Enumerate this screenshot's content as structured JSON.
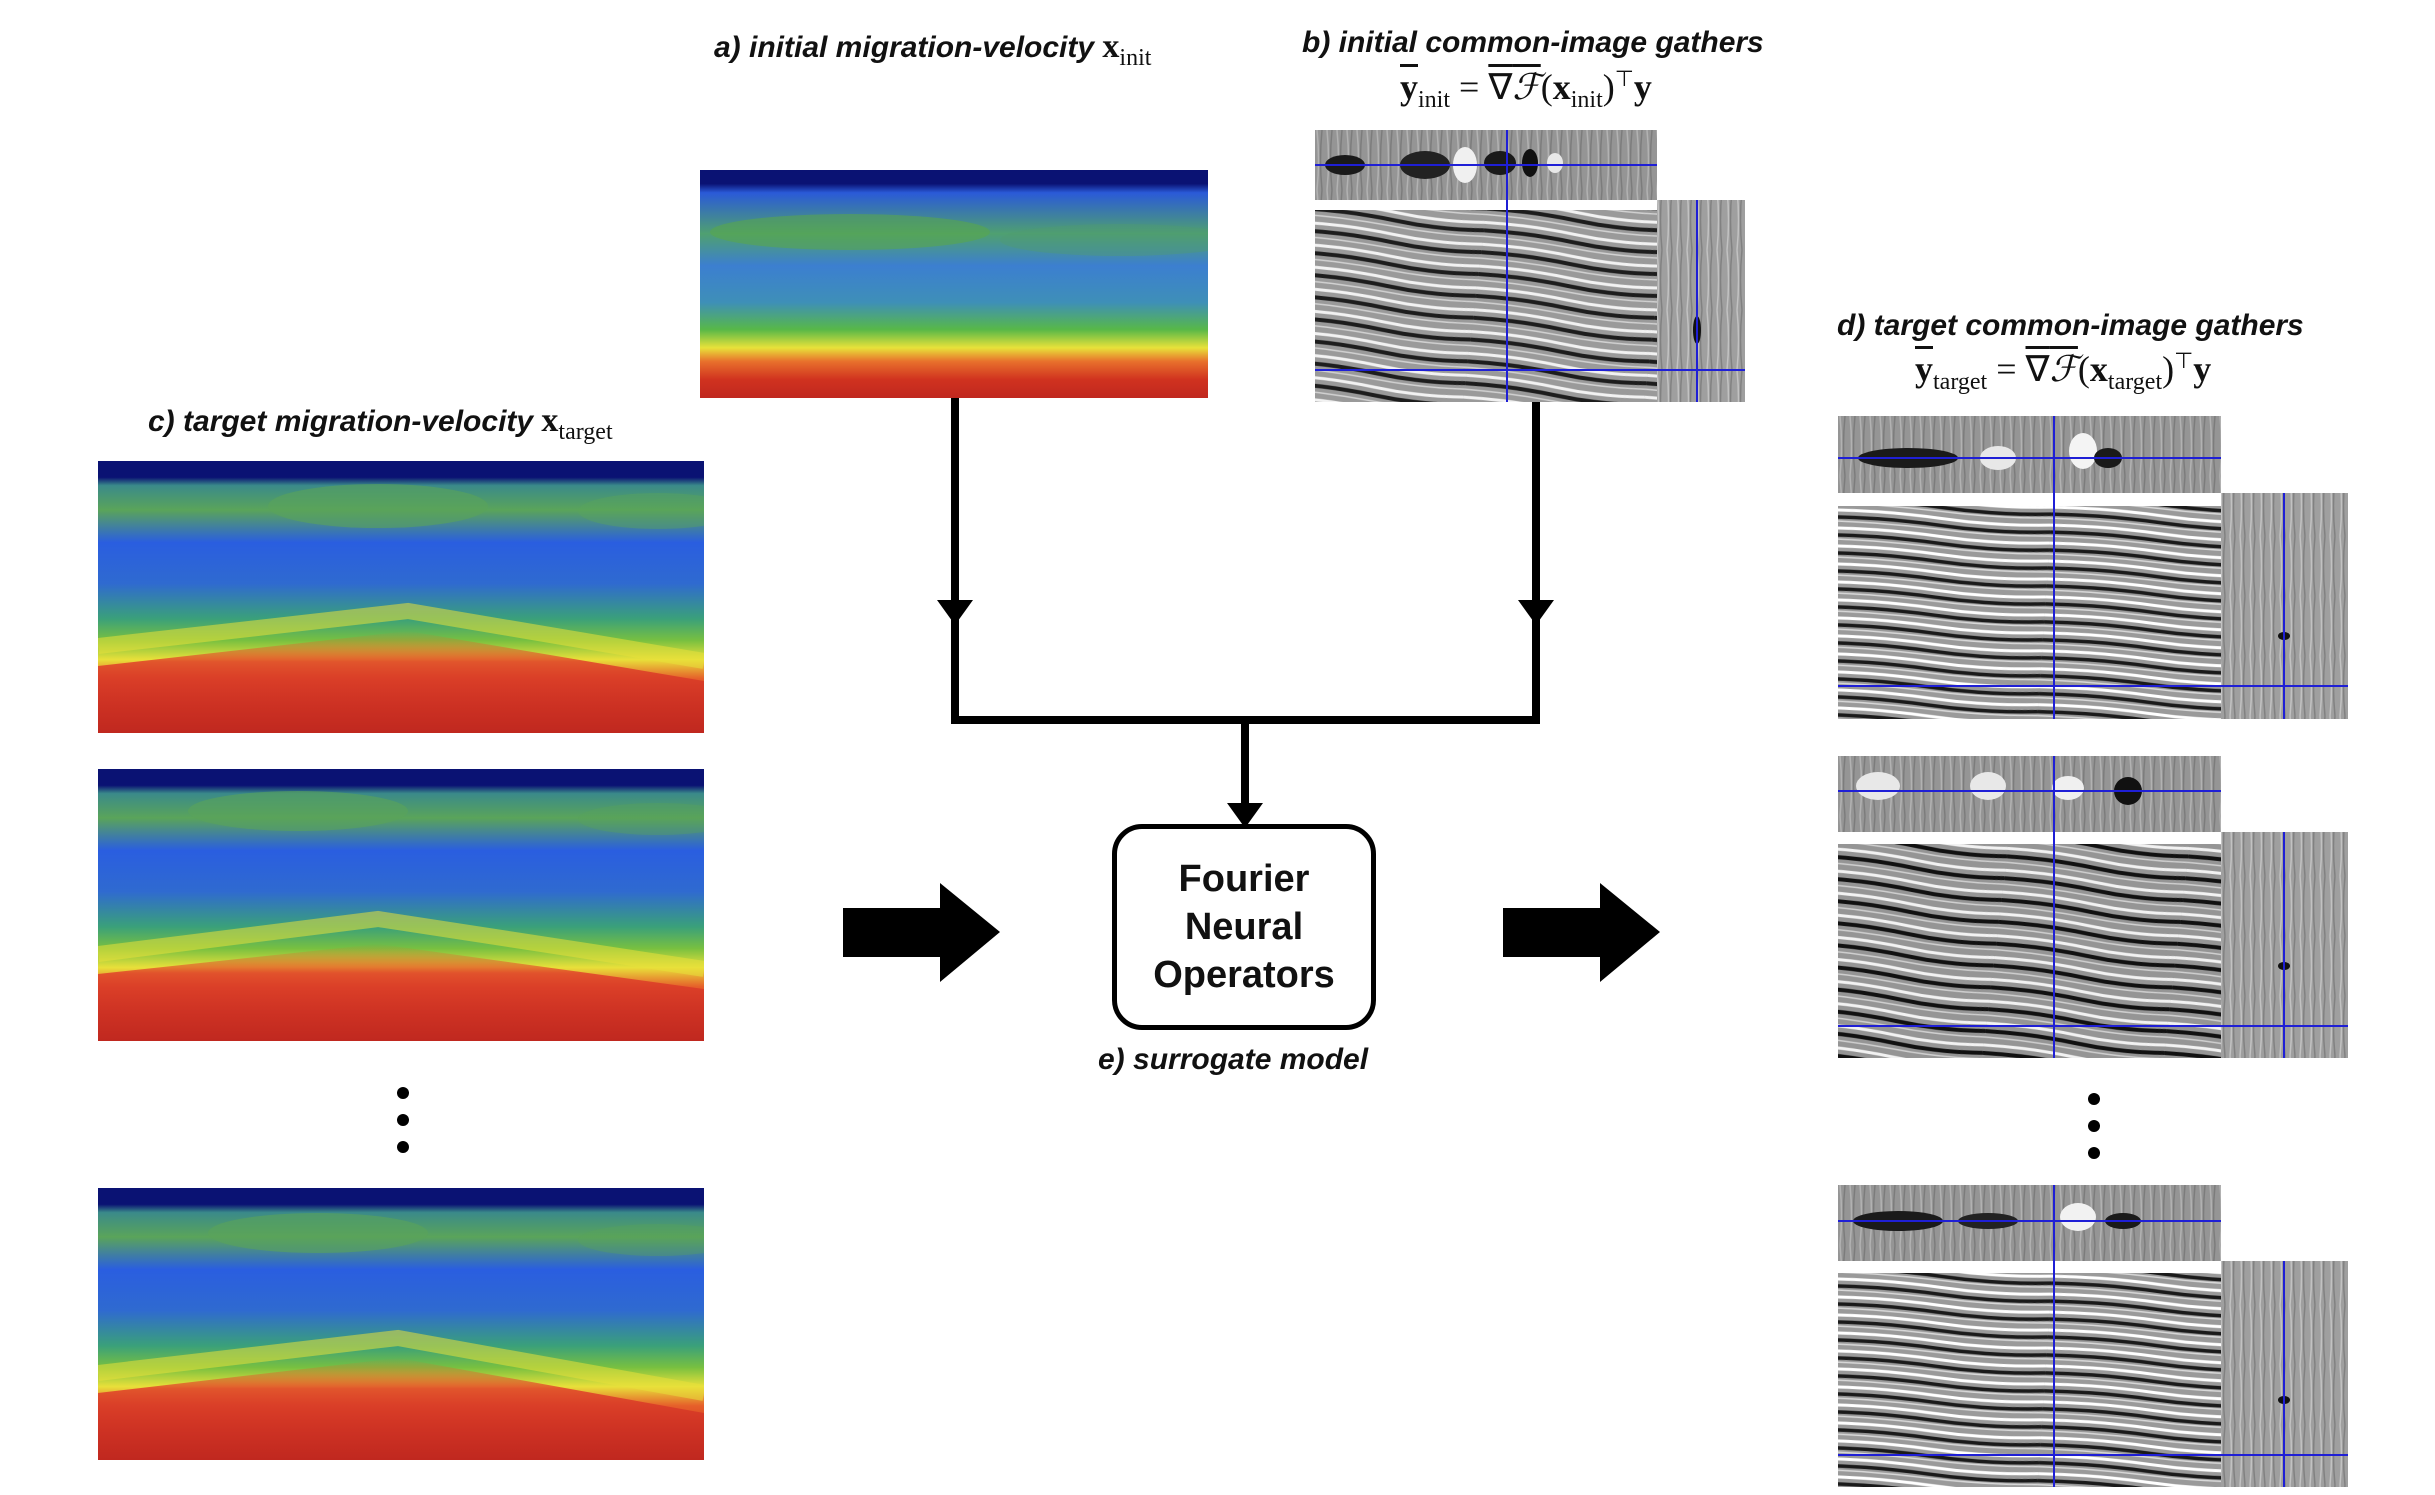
{
  "labels": {
    "a_prefix": "a) initial migration-velocity",
    "a_var": "x",
    "a_sub": "init",
    "b_prefix": "b) initial common-image gathers",
    "c_prefix": "c) target migration-velocity",
    "c_var": "x",
    "c_sub": "target",
    "d_prefix": "d) target common-image gathers",
    "e_label": "e) surrogate model"
  },
  "equations": {
    "b": {
      "lhs": "y",
      "lhs_sub": "init",
      "eq": "=",
      "op": "∇",
      "F": "ℱ",
      "arg": "x",
      "arg_sub": "init",
      "T": "⊤",
      "rhs": "y"
    },
    "d": {
      "lhs": "y",
      "lhs_sub": "target",
      "eq": "=",
      "op": "∇",
      "F": "ℱ",
      "arg": "x",
      "arg_sub": "target",
      "T": "⊤",
      "rhs": "y"
    }
  },
  "fno": {
    "line1": "Fourier",
    "line2": "Neural",
    "line3": "Operators"
  },
  "colors": {
    "arrow": "#000000",
    "crosshair": "#1f1fd6",
    "velocity_top": "#0a1273",
    "velocity_low": "#c0281f"
  },
  "icons": {
    "big_arrow": "right-arrow-icon",
    "ellipsis": "vertical-ellipsis-icon"
  }
}
